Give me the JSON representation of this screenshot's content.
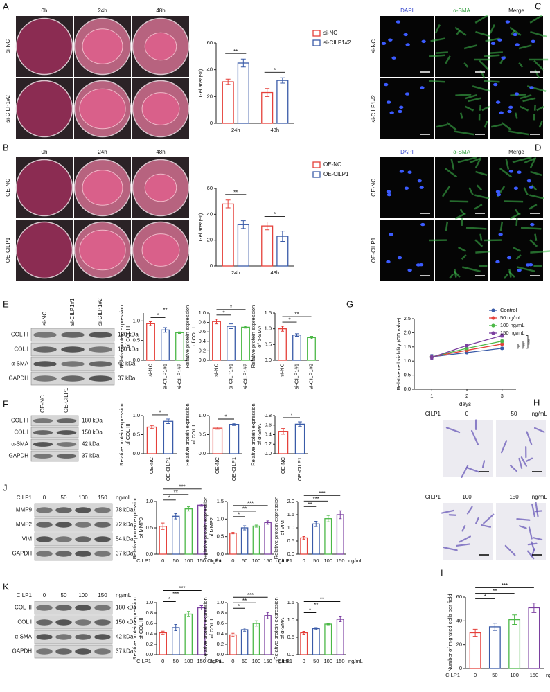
{
  "panels": [
    "A",
    "B",
    "C",
    "D",
    "E",
    "F",
    "G",
    "H",
    "I",
    "J",
    "K"
  ],
  "gel_A": {
    "columns": [
      "0h",
      "24h",
      "48h"
    ],
    "rows": [
      "si-NC",
      "si-CILP1#2"
    ]
  },
  "gel_B": {
    "columns": [
      "0h",
      "24h",
      "48h"
    ],
    "rows": [
      "OE-NC",
      "OE-CILP1"
    ]
  },
  "if_C": {
    "columns": [
      "DAPI",
      "α-SMA",
      "Merge"
    ],
    "rows": [
      "si-NC",
      "si-CILP1#2"
    ]
  },
  "if_D": {
    "columns": [
      "DAPI",
      "α-SMA",
      "Merge"
    ],
    "rows": [
      "OE-NC",
      "OE-CILP1"
    ]
  },
  "blot_E": {
    "lanes": [
      "si-NC",
      "si-CILP1#1",
      "si-CILP1#2"
    ],
    "proteins": [
      "COL III",
      "COL I",
      "α-SMA",
      "GAPDH"
    ],
    "sizes": [
      "180 kDa",
      "150 kDa",
      "42 kDa",
      "37 kDa"
    ]
  },
  "blot_F": {
    "lanes": [
      "OE-NC",
      "OE-CILP1"
    ],
    "proteins": [
      "COL III",
      "COL I",
      "α-SMA",
      "GAPDH"
    ],
    "sizes": [
      "180 kDa",
      "150 kDa",
      "42 kDa",
      "37 kDa"
    ]
  },
  "blot_J": {
    "treatment": "CILP1",
    "lanes": [
      "0",
      "50",
      "100",
      "150"
    ],
    "unit": "ng/mL",
    "proteins": [
      "MMP9",
      "MMP2",
      "VIM",
      "GAPDH"
    ],
    "sizes": [
      "78 kDa",
      "72 kDa",
      "54 kDa",
      "37 kDa"
    ]
  },
  "blot_K": {
    "treatment": "CILP1",
    "lanes": [
      "0",
      "50",
      "100",
      "150"
    ],
    "unit": "ng/mL",
    "proteins": [
      "COL III",
      "COL I",
      "α-SMA",
      "GAPDH"
    ],
    "sizes": [
      "180 kDa",
      "150 kDa",
      "42 kDa",
      "37 kDa"
    ]
  },
  "transwell_H": {
    "rows": [
      {
        "treatment": "CILP1",
        "doses": [
          "0",
          "50"
        ],
        "unit": "ng/mL"
      },
      {
        "treatment": "CILP1",
        "doses": [
          "100",
          "150"
        ],
        "unit": "ng/mL"
      }
    ]
  },
  "chart_data": [
    {
      "type": "bar",
      "ylabel": [
        "Gel area(%)"
      ],
      "categories": [
        "24h",
        "48h"
      ],
      "series": [
        {
          "name": "si-NC",
          "color": "#e5403a",
          "values": [
            31,
            23
          ],
          "errors": [
            2,
            3
          ]
        },
        {
          "name": "si-CILP1#2",
          "color": "#3a5ba8",
          "values": [
            45,
            32
          ],
          "errors": [
            3,
            2
          ]
        }
      ],
      "ylim": [
        0,
        60
      ],
      "yticks": [
        0,
        20,
        40,
        60
      ],
      "comparisons": [
        {
          "category": 0,
          "label": "**"
        },
        {
          "category": 1,
          "label": "*"
        }
      ]
    },
    {
      "type": "bar",
      "ylabel": [
        "Gel area(%)"
      ],
      "categories": [
        "24h",
        "48h"
      ],
      "series": [
        {
          "name": "OE-NC",
          "color": "#e5403a",
          "values": [
            48,
            31
          ],
          "errors": [
            3,
            3
          ]
        },
        {
          "name": "OE-CILP1",
          "color": "#3a5ba8",
          "values": [
            32,
            23
          ],
          "errors": [
            3,
            4
          ]
        }
      ],
      "ylim": [
        0,
        60
      ],
      "yticks": [
        0,
        20,
        40,
        60
      ],
      "comparisons": [
        {
          "category": 0,
          "label": "**"
        },
        {
          "category": 1,
          "label": "*"
        }
      ]
    },
    {
      "type": "bar",
      "ylabel": [
        "Relative protein expression",
        "of COL III"
      ],
      "categories": [
        "si-NC",
        "si-CILP1#1",
        "si-CILP1#2"
      ],
      "colors": [
        "#e5403a",
        "#3a5ba8",
        "#4cb847"
      ],
      "values": [
        0.93,
        0.77,
        0.7
      ],
      "errors": [
        0.05,
        0.06,
        0.02
      ],
      "ylim": [
        0,
        1.2
      ],
      "yticks": [
        {
          "value": 0,
          "label": "0.0"
        },
        0.5,
        {
          "value": 1,
          "label": "1.0"
        }
      ],
      "comparisons": [
        {
          "groups": [
            0,
            1
          ],
          "label": "*"
        },
        {
          "groups": [
            0,
            2
          ],
          "label": "**"
        }
      ]
    },
    {
      "type": "bar",
      "ylabel": [
        "Relative protein expression",
        "of COL I"
      ],
      "categories": [
        "si-NC",
        "si-CILP1#1",
        "si-CILP1#2"
      ],
      "colors": [
        "#e5403a",
        "#3a5ba8",
        "#4cb847"
      ],
      "values": [
        0.82,
        0.72,
        0.7
      ],
      "errors": [
        0.05,
        0.05,
        0.02
      ],
      "ylim": [
        0,
        1
      ],
      "yticks": [
        {
          "value": 0,
          "label": "0.0"
        },
        0.2,
        0.4,
        0.6,
        0.8,
        {
          "value": 1,
          "label": "1.0"
        }
      ],
      "comparisons": [
        {
          "groups": [
            0,
            1
          ],
          "label": "*"
        },
        {
          "groups": [
            0,
            2
          ],
          "label": "*"
        }
      ]
    },
    {
      "type": "bar",
      "ylabel": [
        "Relative protein expression",
        "of α-SMA"
      ],
      "categories": [
        "si-NC",
        "si-CILP1#1",
        "si-CILP1#2"
      ],
      "colors": [
        "#e5403a",
        "#3a5ba8",
        "#4cb847"
      ],
      "values": [
        1.0,
        0.8,
        0.72
      ],
      "errors": [
        0.08,
        0.04,
        0.04
      ],
      "ylim": [
        0,
        1.5
      ],
      "yticks": [
        {
          "value": 0,
          "label": "0.0"
        },
        0.5,
        {
          "value": 1,
          "label": "1.0"
        },
        1.5
      ],
      "comparisons": [
        {
          "groups": [
            0,
            1
          ],
          "label": "*"
        },
        {
          "groups": [
            0,
            2
          ],
          "label": "**"
        }
      ]
    },
    {
      "type": "bar",
      "ylabel": [
        "Relative protein expression",
        "of COL III"
      ],
      "categories": [
        "OE-NC",
        "OE-CILP1"
      ],
      "colors": [
        "#e5403a",
        "#3a5ba8"
      ],
      "values": [
        0.7,
        0.85
      ],
      "errors": [
        0.04,
        0.06
      ],
      "ylim": [
        0,
        1
      ],
      "yticks": [
        {
          "value": 0,
          "label": "0.0"
        },
        0.5,
        {
          "value": 1,
          "label": "1.0"
        }
      ],
      "comparisons": [
        {
          "groups": [
            0,
            1
          ],
          "label": "*"
        }
      ]
    },
    {
      "type": "bar",
      "ylabel": [
        "Relative protein expression",
        "of COL I"
      ],
      "categories": [
        "OE-NC",
        "OE-CILP1"
      ],
      "colors": [
        "#e5403a",
        "#3a5ba8"
      ],
      "values": [
        0.67,
        0.77
      ],
      "errors": [
        0.03,
        0.03
      ],
      "ylim": [
        0,
        1
      ],
      "yticks": [
        {
          "value": 0,
          "label": "0.0"
        },
        0.5,
        {
          "value": 1,
          "label": "1.0"
        }
      ],
      "comparisons": [
        {
          "groups": [
            0,
            1
          ],
          "label": "*"
        }
      ]
    },
    {
      "type": "bar",
      "ylabel": [
        "Relative protein expression",
        "of α-SMA"
      ],
      "categories": [
        "OE-NC",
        "OE-CILP1"
      ],
      "colors": [
        "#e5403a",
        "#3a5ba8"
      ],
      "values": [
        0.47,
        0.62
      ],
      "errors": [
        0.06,
        0.05
      ],
      "ylim": [
        0,
        0.8
      ],
      "yticks": [
        {
          "value": 0,
          "label": "0.0"
        },
        0.2,
        0.4,
        0.6,
        0.8
      ],
      "comparisons": [
        {
          "groups": [
            0,
            1
          ],
          "label": "*"
        }
      ]
    },
    {
      "type": "line",
      "ylabel": [
        "Relative cell viability (OD valve)"
      ],
      "xlabel": "days",
      "x": [
        1,
        2,
        3
      ],
      "xlim": [
        0.5,
        3.4
      ],
      "xticks": [
        1,
        2,
        3
      ],
      "ylim": [
        0,
        2.5
      ],
      "yticks": [
        {
          "value": 0,
          "label": "0.0"
        },
        0.5,
        {
          "value": 1,
          "label": "1.0"
        },
        1.5,
        {
          "value": 2,
          "label": "2.0"
        },
        2.5
      ],
      "series": [
        {
          "name": "Control",
          "color": "#3a5ba8",
          "values": [
            1.15,
            1.3,
            1.45
          ],
          "errors": [
            0.08,
            0.04,
            0.04
          ]
        },
        {
          "name": "50 ng/mL",
          "color": "#e5403a",
          "values": [
            1.15,
            1.38,
            1.6
          ],
          "errors": [
            0.06,
            0.04,
            0.05
          ]
        },
        {
          "name": "100 ng/mL",
          "color": "#4cb847",
          "values": [
            1.15,
            1.45,
            1.7
          ],
          "errors": [
            0.06,
            0.05,
            0.05
          ]
        },
        {
          "name": "150 ng/mL",
          "color": "#7b3fa0",
          "values": [
            1.13,
            1.55,
            1.9
          ],
          "errors": [
            0.06,
            0.05,
            0.06
          ]
        }
      ],
      "comparisons": [
        {
          "series": [
            0,
            1
          ],
          "label": "*"
        },
        {
          "series": [
            0,
            2
          ],
          "label": "**"
        },
        {
          "series": [
            0,
            3
          ],
          "label": "***"
        }
      ]
    },
    {
      "type": "bar",
      "ylabel": [
        "Relative protein expression",
        "of MMP9"
      ],
      "categories": [
        "0",
        "50",
        "100",
        "150"
      ],
      "xlabel": "CILP1",
      "xunit": "ng/mL",
      "colors": [
        "#e5403a",
        "#3a5ba8",
        "#4cb847",
        "#7b3fa0"
      ],
      "values": [
        0.53,
        0.72,
        0.86,
        0.93
      ],
      "errors": [
        0.06,
        0.05,
        0.04,
        0.02
      ],
      "ylim": [
        0,
        1
      ],
      "yticks": [
        {
          "value": 0,
          "label": "0.0"
        },
        0.5,
        {
          "value": 1,
          "label": "1.0"
        }
      ],
      "comparisons": [
        {
          "groups": [
            0,
            1
          ],
          "label": "*"
        },
        {
          "groups": [
            0,
            2
          ],
          "label": "**"
        },
        {
          "groups": [
            0,
            3
          ],
          "label": "***"
        }
      ]
    },
    {
      "type": "bar",
      "ylabel": [
        "Relative protein expression",
        "of MMP2"
      ],
      "categories": [
        "0",
        "50",
        "100",
        "150"
      ],
      "xlabel": "CILP1",
      "xunit": "ng/mL",
      "colors": [
        "#e5403a",
        "#3a5ba8",
        "#4cb847",
        "#7b3fa0"
      ],
      "values": [
        0.6,
        0.75,
        0.8,
        0.9
      ],
      "errors": [
        0.02,
        0.06,
        0.03,
        0.05
      ],
      "ylim": [
        0,
        1.5
      ],
      "yticks": [
        {
          "value": 0,
          "label": "0.0"
        },
        0.5,
        {
          "value": 1,
          "label": "1.0"
        },
        1.5
      ],
      "comparisons": [
        {
          "groups": [
            0,
            1
          ],
          "label": "*"
        },
        {
          "groups": [
            0,
            2
          ],
          "label": "**"
        },
        {
          "groups": [
            0,
            3
          ],
          "label": "***"
        }
      ]
    },
    {
      "type": "bar",
      "ylabel": [
        "Relative protein expression",
        "of VIM"
      ],
      "categories": [
        "0",
        "50",
        "100",
        "150"
      ],
      "xlabel": "CILP1",
      "xunit": "ng/mL",
      "colors": [
        "#e5403a",
        "#3a5ba8",
        "#4cb847",
        "#7b3fa0"
      ],
      "values": [
        0.62,
        1.15,
        1.35,
        1.5
      ],
      "errors": [
        0.05,
        0.1,
        0.12,
        0.15
      ],
      "ylim": [
        0,
        2
      ],
      "yticks": [
        {
          "value": 0,
          "label": "0.0"
        },
        0.5,
        {
          "value": 1,
          "label": "1.0"
        },
        1.5,
        {
          "value": 2,
          "label": "2.0"
        }
      ],
      "comparisons": [
        {
          "groups": [
            0,
            1
          ],
          "label": "**"
        },
        {
          "groups": [
            0,
            2
          ],
          "label": "***"
        },
        {
          "groups": [
            0,
            3
          ],
          "label": "***"
        }
      ]
    },
    {
      "type": "bar",
      "ylabel": [
        "Relative protein expression",
        "of COL III"
      ],
      "categories": [
        "0",
        "50",
        "100",
        "150"
      ],
      "xlabel": "CILP1",
      "xunit": "ng/mL",
      "colors": [
        "#e5403a",
        "#3a5ba8",
        "#4cb847",
        "#7b3fa0"
      ],
      "values": [
        0.42,
        0.52,
        0.78,
        0.9
      ],
      "errors": [
        0.03,
        0.06,
        0.05,
        0.04
      ],
      "ylim": [
        0,
        1
      ],
      "yticks": [
        {
          "value": 0,
          "label": "0.0"
        },
        0.2,
        0.4,
        0.6,
        0.8,
        {
          "value": 1,
          "label": "1.0"
        }
      ],
      "comparisons": [
        {
          "groups": [
            0,
            1
          ],
          "label": "*"
        },
        {
          "groups": [
            0,
            2
          ],
          "label": "***"
        },
        {
          "groups": [
            0,
            3
          ],
          "label": "***"
        }
      ]
    },
    {
      "type": "bar",
      "ylabel": [
        "Relative protein expression",
        "of COL I"
      ],
      "categories": [
        "0",
        "50",
        "100",
        "150"
      ],
      "xlabel": "CILP1",
      "xunit": "ng/mL",
      "colors": [
        "#e5403a",
        "#3a5ba8",
        "#4cb847",
        "#7b3fa0"
      ],
      "values": [
        0.38,
        0.48,
        0.6,
        0.75
      ],
      "errors": [
        0.03,
        0.03,
        0.05,
        0.06
      ],
      "ylim": [
        0,
        1
      ],
      "yticks": [
        {
          "value": 0,
          "label": "0.0"
        },
        0.2,
        0.4,
        0.6,
        0.8,
        {
          "value": 1,
          "label": "1.0"
        }
      ],
      "comparisons": [
        {
          "groups": [
            0,
            1
          ],
          "label": "*"
        },
        {
          "groups": [
            0,
            2
          ],
          "label": "**"
        },
        {
          "groups": [
            0,
            3
          ],
          "label": "***"
        }
      ]
    },
    {
      "type": "bar",
      "ylabel": [
        "Relative protein expression",
        "of α-SMA"
      ],
      "categories": [
        "0",
        "50",
        "100",
        "150"
      ],
      "xlabel": "CILP1",
      "xunit": "ng/mL",
      "colors": [
        "#e5403a",
        "#3a5ba8",
        "#4cb847",
        "#7b3fa0"
      ],
      "values": [
        0.63,
        0.75,
        0.88,
        1.02
      ],
      "errors": [
        0.04,
        0.03,
        0.02,
        0.07
      ],
      "ylim": [
        0,
        1.5
      ],
      "yticks": [
        {
          "value": 0,
          "label": "0.0"
        },
        0.5,
        {
          "value": 1,
          "label": "1.0"
        },
        1.5
      ],
      "comparisons": [
        {
          "groups": [
            0,
            1
          ],
          "label": "*"
        },
        {
          "groups": [
            0,
            2
          ],
          "label": "**"
        },
        {
          "groups": [
            0,
            3
          ],
          "label": "**"
        }
      ]
    },
    {
      "type": "bar",
      "ylabel": [
        "Number of migrated cells per field"
      ],
      "categories": [
        "0",
        "50",
        "100",
        "150"
      ],
      "xlabel": "CILP1",
      "xunit": "ng/mL",
      "colors": [
        "#e5403a",
        "#3a5ba8",
        "#4cb847",
        "#7b3fa0"
      ],
      "values": [
        30,
        35,
        41,
        51
      ],
      "errors": [
        3,
        3,
        4,
        4
      ],
      "ylim": [
        0,
        60
      ],
      "yticks": [
        0,
        20,
        40,
        60
      ],
      "comparisons": [
        {
          "groups": [
            0,
            1
          ],
          "label": "*"
        },
        {
          "groups": [
            0,
            2
          ],
          "label": "**"
        },
        {
          "groups": [
            0,
            3
          ],
          "label": "***"
        }
      ]
    }
  ]
}
